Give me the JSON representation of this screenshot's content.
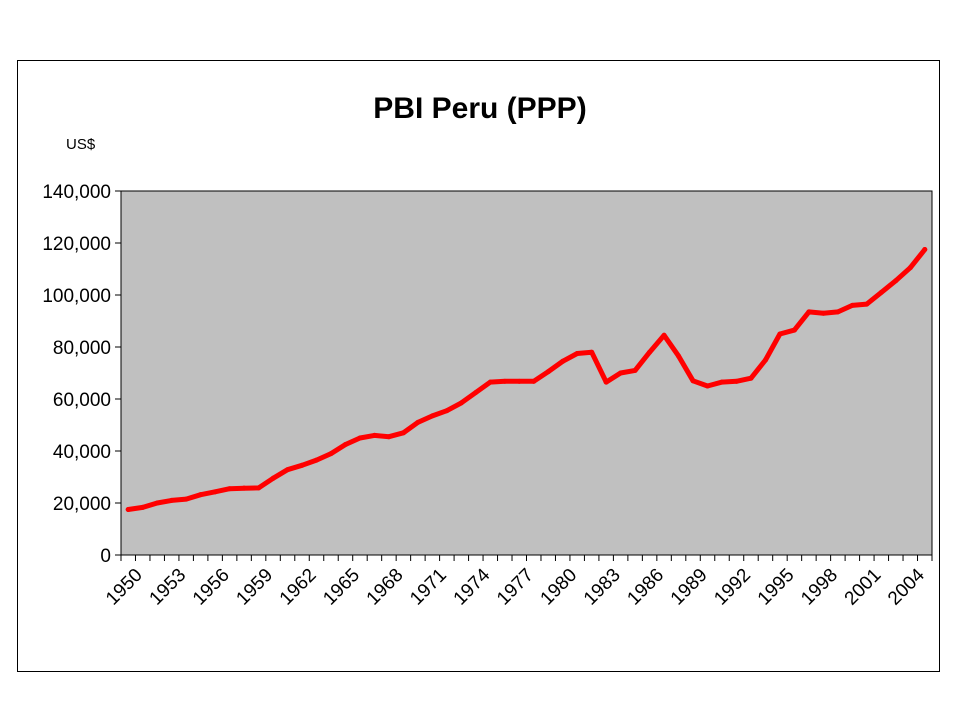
{
  "chart_data": {
    "type": "line",
    "title": "PBI Peru (PPP)",
    "unit_label": "US$",
    "xlabel": "",
    "ylabel": "",
    "ylim": [
      0,
      140000
    ],
    "yticks": [
      0,
      20000,
      40000,
      60000,
      80000,
      100000,
      120000,
      140000
    ],
    "ytick_labels": [
      "0",
      "20,000",
      "40,000",
      "60,000",
      "80,000",
      "100,000",
      "120,000",
      "140,000"
    ],
    "x": [
      1950,
      1951,
      1952,
      1953,
      1954,
      1955,
      1956,
      1957,
      1958,
      1959,
      1960,
      1961,
      1962,
      1963,
      1964,
      1965,
      1966,
      1967,
      1968,
      1969,
      1970,
      1971,
      1972,
      1973,
      1974,
      1975,
      1976,
      1977,
      1978,
      1979,
      1980,
      1981,
      1982,
      1983,
      1984,
      1985,
      1986,
      1987,
      1988,
      1989,
      1990,
      1991,
      1992,
      1993,
      1994,
      1995,
      1996,
      1997,
      1998,
      1999,
      2000,
      2001,
      2002,
      2003,
      2004,
      2005
    ],
    "xtick_labels": [
      "1950",
      "1953",
      "1956",
      "1959",
      "1962",
      "1965",
      "1968",
      "1971",
      "1974",
      "1977",
      "1980",
      "1983",
      "1986",
      "1989",
      "1992",
      "1995",
      "1998",
      "2001",
      "2004"
    ],
    "plot_background": "#c0c0c0",
    "line_color": "#ff0000",
    "grid": false,
    "legend": false,
    "series": [
      {
        "values": [
          17500,
          18300,
          20000,
          21000,
          21500,
          23200,
          24300,
          25500,
          25700,
          25800,
          29500,
          32800,
          34500,
          36500,
          39000,
          42500,
          45000,
          46000,
          45500,
          47000,
          51000,
          53500,
          55500,
          58500,
          62500,
          66500,
          66800,
          66800,
          66800,
          70500,
          74500,
          77500,
          78000,
          66500,
          70000,
          71000,
          78000,
          84500,
          76500,
          67000,
          65000,
          66500,
          66800,
          68000,
          75000,
          85000,
          86500,
          93500,
          93000,
          93500,
          96000,
          96500,
          101000,
          105500,
          110500,
          117500
        ]
      }
    ]
  }
}
